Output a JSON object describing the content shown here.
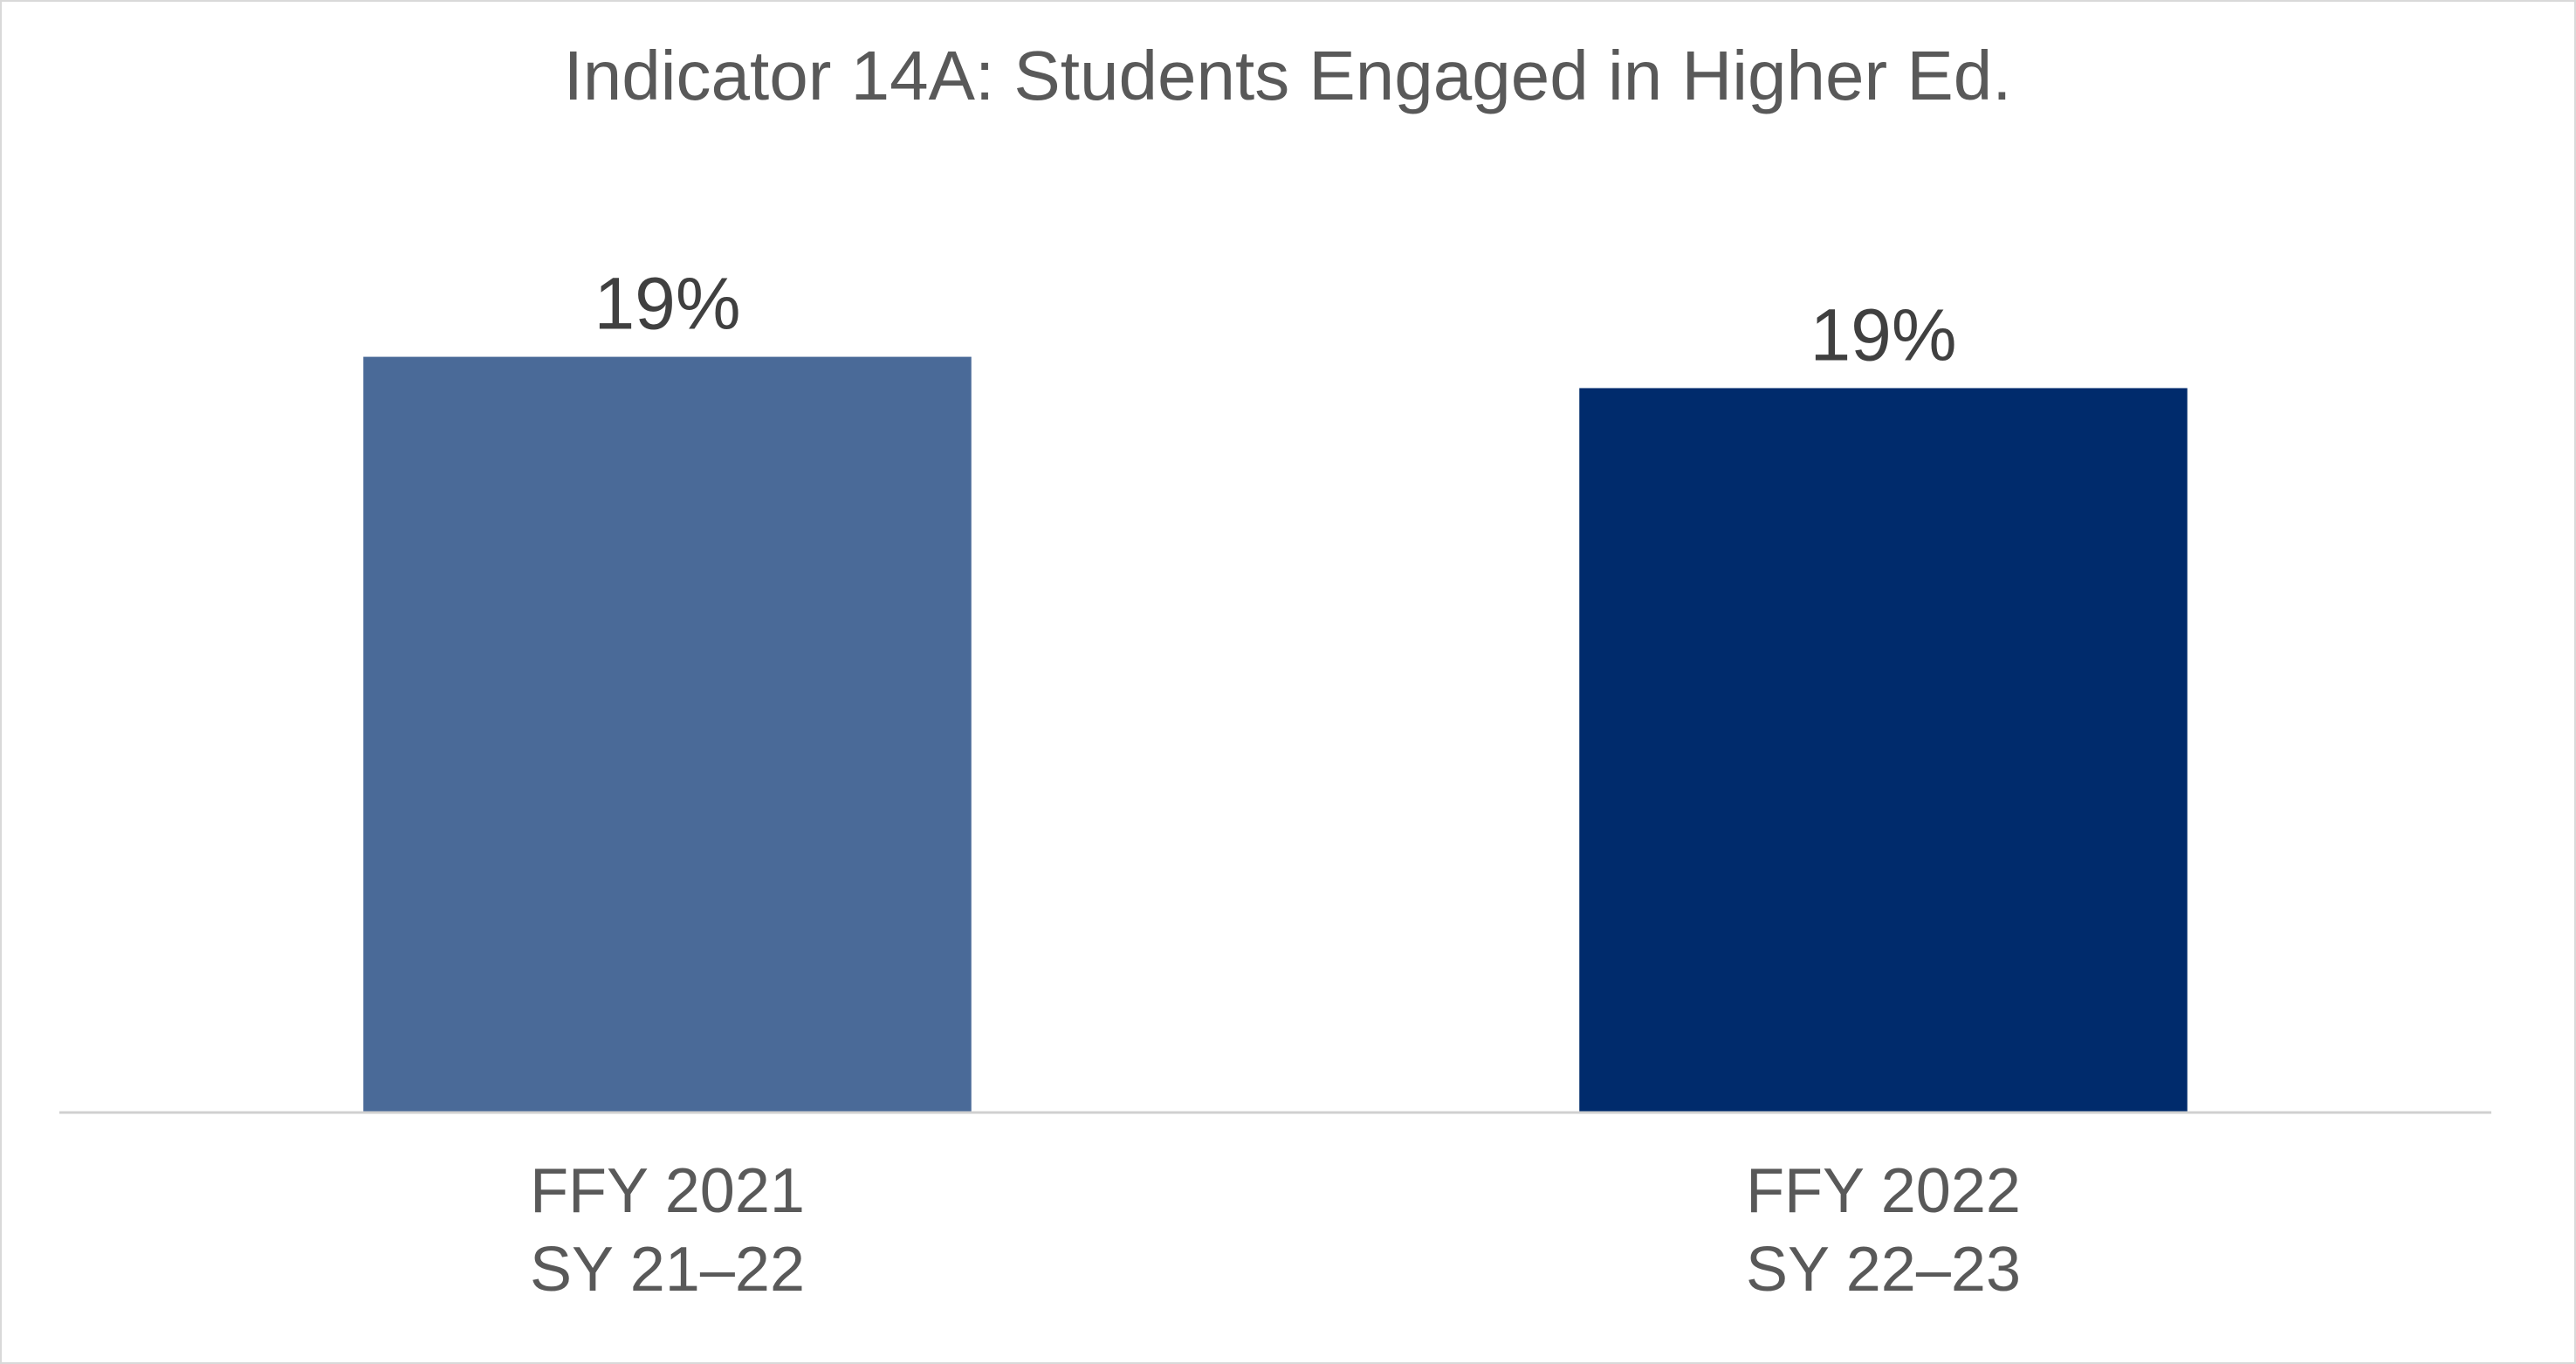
{
  "chart_data": {
    "type": "bar",
    "title": "Indicator 14A: Students Engaged in Higher Ed.",
    "categories": [
      [
        "FFY 2021",
        "SY 21–22"
      ],
      [
        "FFY 2022",
        "SY 22–23"
      ]
    ],
    "values": [
      19.3,
      18.5
    ],
    "data_labels": [
      "19%",
      "19%"
    ],
    "bar_colors": [
      "#4a6a98",
      "#002b6c"
    ],
    "ylim": [
      0,
      25
    ],
    "xlabel": "",
    "ylabel": "",
    "grid": false,
    "legend": "none"
  }
}
